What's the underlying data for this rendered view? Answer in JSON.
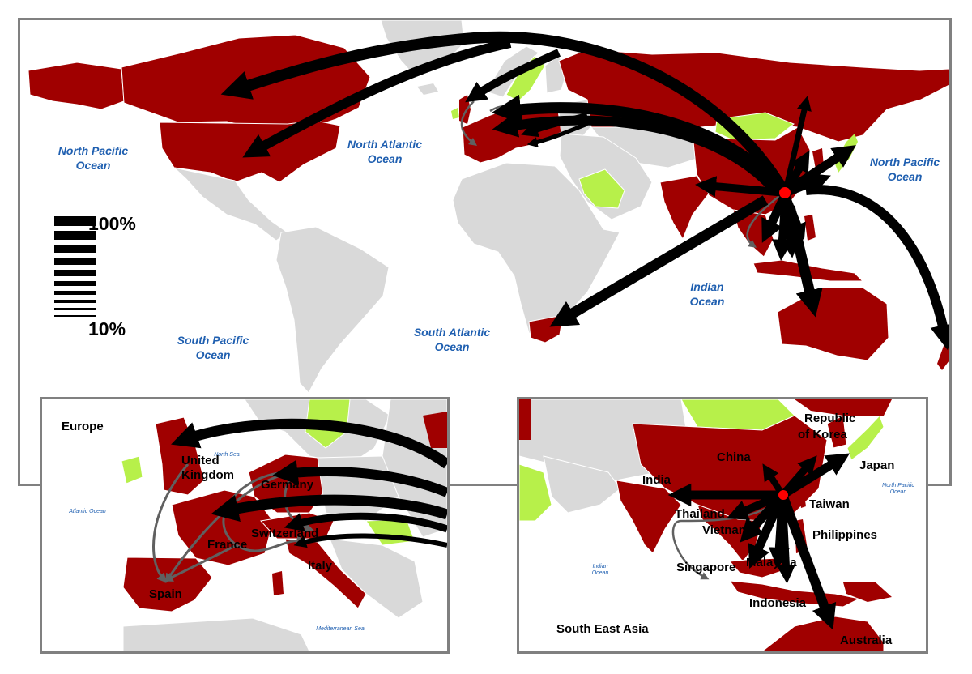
{
  "colors": {
    "presence": "#a00000",
    "highlight": "#b7f04a",
    "other": "#d9d9d9",
    "origin": "#ff0000",
    "flow": "#000000",
    "minor_flow": "#606060",
    "ocean_label": "#1f5fb0",
    "frame": "#808080"
  },
  "world_map": {
    "ocean_labels": {
      "north_pacific_west": [
        "North Pacific",
        "Ocean"
      ],
      "north_atlantic": [
        "North Atlantic",
        "Ocean"
      ],
      "north_pacific_east": [
        "North Pacific",
        "Ocean"
      ],
      "indian": [
        "Indian",
        "Ocean"
      ],
      "south_pacific": [
        "South Pacific",
        "Ocean"
      ],
      "south_atlantic": [
        "South Atlantic",
        "Ocean"
      ]
    },
    "legend": {
      "max_label": "100%",
      "min_label": "10%",
      "levels": [
        1.0,
        0.9,
        0.8,
        0.7,
        0.6,
        0.5,
        0.4,
        0.3,
        0.2,
        0.1
      ]
    }
  },
  "europe_inset": {
    "title": "Europe",
    "sea_labels": {
      "north_sea": "North Sea",
      "atlantic": "Atlantic Ocean",
      "mediterranean": "Mediterranean Sea"
    },
    "countries": {
      "uk": [
        "United",
        "Kingdom"
      ],
      "germany": "Germany",
      "france": "France",
      "switzerland": "Switzerland",
      "italy": "Italy",
      "spain": "Spain"
    }
  },
  "sea_inset": {
    "title": "South East Asia",
    "sea_labels": {
      "north_pacific": [
        "North Pacific",
        "Ocean"
      ],
      "indian": [
        "Indian",
        "Ocean"
      ]
    },
    "countries": {
      "korea": [
        "Republic",
        "of Korea"
      ],
      "china": "China",
      "japan": "Japan",
      "india": "India",
      "taiwan": "Taiwan",
      "thailand": "Thailand",
      "vietnam": "Vietnam",
      "philippines": "Philippines",
      "singapore": "Singapore",
      "malaysia": "Malaysia",
      "indonesia": "Indonesia",
      "australia": "Australia"
    }
  }
}
